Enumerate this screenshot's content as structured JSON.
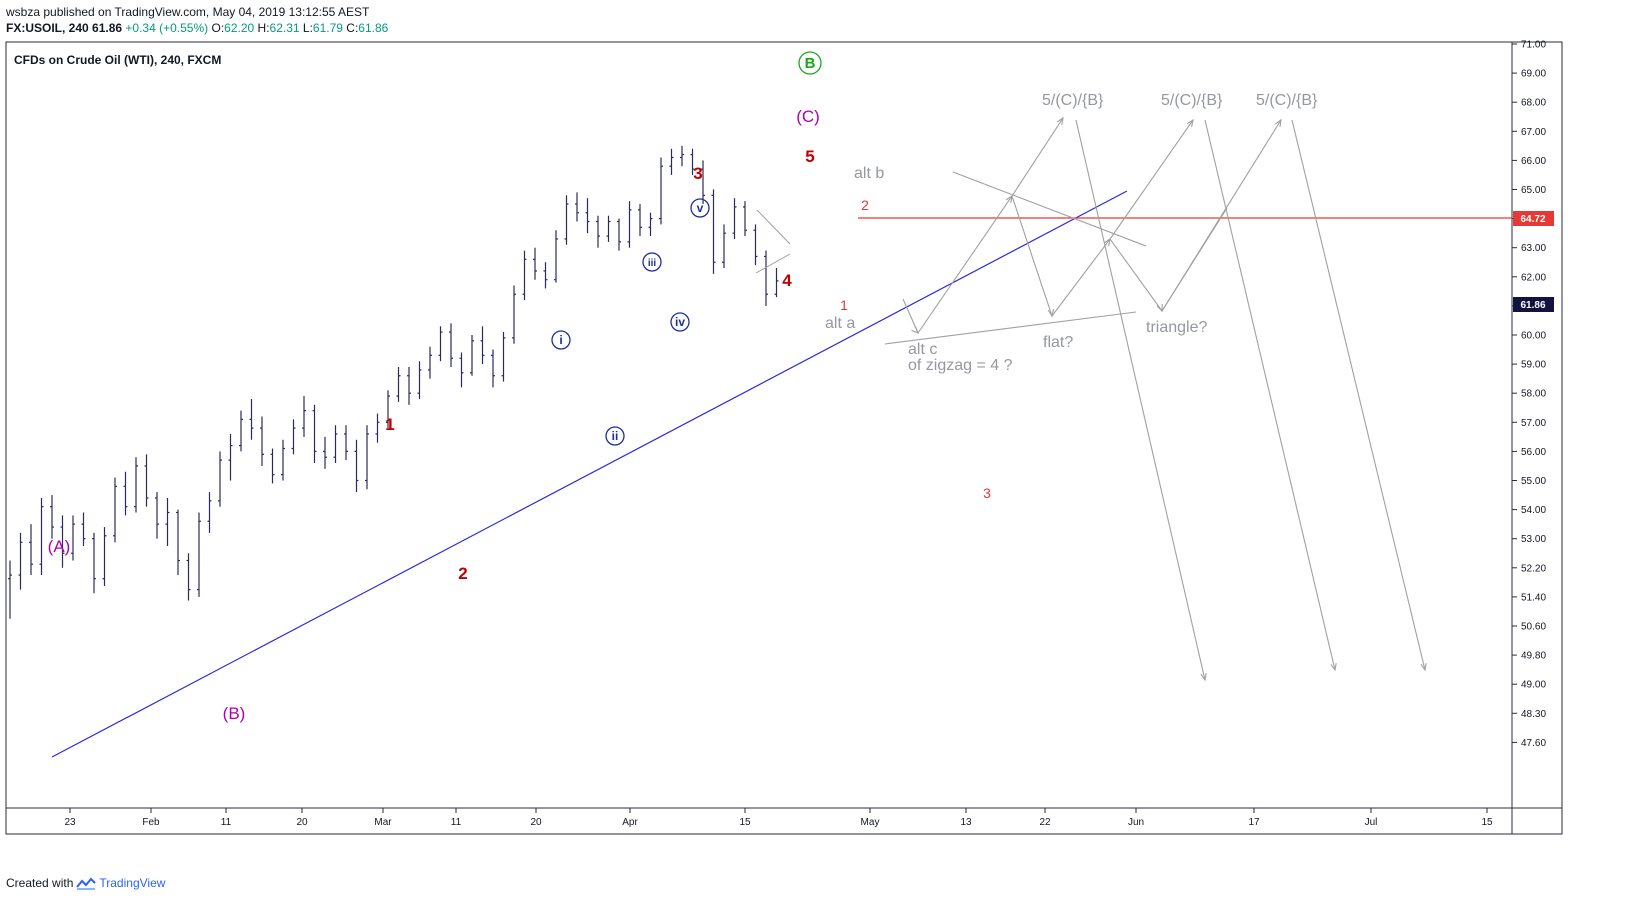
{
  "header": {
    "published": "wsbza published on TradingView.com, May 04, 2019 13:12:55 AEST",
    "symbol": "FX:USOIL, 240",
    "last": "61.86",
    "change": "+0.34 (+0.55%)",
    "o_label": "O:",
    "o": "62.20",
    "h_label": "H:",
    "h": "62.31",
    "l_label": "L:",
    "l": "61.79",
    "c_label": "C:",
    "c": "61.86"
  },
  "chart_title": "CFDs on Crude Oil (WTI), 240, FXCM",
  "footer": {
    "created": "Created with",
    "brand": "TradingView"
  },
  "colors": {
    "bars": "#2c2a5a",
    "trendline": "#2a2ae0",
    "resistance": "#e53935",
    "wave_red": "#c00000",
    "wave_purple": "#b000b0",
    "wave_green": "#1aa81a",
    "wave_navy": "#1f2f9a",
    "projection": "#a0a0a0"
  },
  "chart_data": {
    "type": "ohlc",
    "y_axis_labels": [
      "71.00",
      "69.00",
      "68.00",
      "67.00",
      "66.00",
      "65.00",
      "64.00",
      "63.00",
      "62.00",
      "61.00",
      "60.00",
      "59.00",
      "58.00",
      "57.00",
      "56.00",
      "55.00",
      "54.00",
      "53.00",
      "52.20",
      "51.40",
      "50.60",
      "49.80",
      "49.00",
      "48.30",
      "47.60"
    ],
    "x_axis_labels": [
      "23",
      "Feb",
      "11",
      "20",
      "Mar",
      "11",
      "20",
      "Apr",
      "15",
      "May",
      "13",
      "22",
      "Jun",
      "17",
      "Jul",
      "15"
    ],
    "price_labels": {
      "current": "61.86",
      "level": "64.72"
    },
    "series": [
      {
        "name": "FX:USOIL",
        "values": [
          {
            "d": 0,
            "o": 51.9,
            "h": 52.4,
            "l": 50.8,
            "c": 52.0
          },
          {
            "d": 2,
            "o": 52.0,
            "h": 53.2,
            "l": 51.6,
            "c": 52.9
          },
          {
            "d": 4,
            "o": 52.9,
            "h": 53.5,
            "l": 52.0,
            "c": 52.3
          },
          {
            "d": 6,
            "o": 52.3,
            "h": 54.4,
            "l": 52.0,
            "c": 54.1
          },
          {
            "d": 8,
            "o": 54.1,
            "h": 54.5,
            "l": 53.0,
            "c": 53.4
          },
          {
            "d": 10,
            "o": 53.4,
            "h": 53.8,
            "l": 52.2,
            "c": 52.6
          },
          {
            "d": 12,
            "o": 52.6,
            "h": 53.8,
            "l": 52.4,
            "c": 53.5
          },
          {
            "d": 14,
            "o": 53.5,
            "h": 53.9,
            "l": 52.8,
            "c": 53.0
          },
          {
            "d": 16,
            "o": 53.0,
            "h": 53.2,
            "l": 51.5,
            "c": 51.9
          },
          {
            "d": 18,
            "o": 51.9,
            "h": 53.4,
            "l": 51.7,
            "c": 53.1
          },
          {
            "d": 20,
            "o": 53.1,
            "h": 55.1,
            "l": 52.9,
            "c": 54.8
          },
          {
            "d": 22,
            "o": 54.8,
            "h": 55.3,
            "l": 53.8,
            "c": 54.1
          },
          {
            "d": 24,
            "o": 54.1,
            "h": 55.8,
            "l": 53.9,
            "c": 55.5
          },
          {
            "d": 26,
            "o": 55.5,
            "h": 55.9,
            "l": 54.1,
            "c": 54.4
          },
          {
            "d": 28,
            "o": 54.4,
            "h": 54.6,
            "l": 53.0,
            "c": 53.5
          },
          {
            "d": 30,
            "o": 53.5,
            "h": 54.4,
            "l": 52.8,
            "c": 53.9
          },
          {
            "d": 32,
            "o": 53.9,
            "h": 54.0,
            "l": 52.0,
            "c": 52.4
          },
          {
            "d": 34,
            "o": 52.4,
            "h": 52.6,
            "l": 51.3,
            "c": 51.6
          },
          {
            "d": 36,
            "o": 51.6,
            "h": 53.9,
            "l": 51.4,
            "c": 53.6
          },
          {
            "d": 38,
            "o": 53.6,
            "h": 54.6,
            "l": 53.2,
            "c": 54.3
          },
          {
            "d": 40,
            "o": 54.3,
            "h": 56.0,
            "l": 54.1,
            "c": 55.7
          },
          {
            "d": 42,
            "o": 55.7,
            "h": 56.6,
            "l": 55.0,
            "c": 56.2
          },
          {
            "d": 44,
            "o": 56.2,
            "h": 57.4,
            "l": 56.0,
            "c": 57.1
          },
          {
            "d": 46,
            "o": 57.1,
            "h": 57.8,
            "l": 56.4,
            "c": 56.8
          },
          {
            "d": 48,
            "o": 56.8,
            "h": 57.2,
            "l": 55.5,
            "c": 55.9
          },
          {
            "d": 50,
            "o": 55.9,
            "h": 56.1,
            "l": 54.9,
            "c": 55.2
          },
          {
            "d": 52,
            "o": 55.2,
            "h": 56.4,
            "l": 55.0,
            "c": 56.1
          },
          {
            "d": 54,
            "o": 56.1,
            "h": 57.1,
            "l": 55.9,
            "c": 56.8
          },
          {
            "d": 56,
            "o": 56.8,
            "h": 57.9,
            "l": 56.5,
            "c": 57.4
          },
          {
            "d": 58,
            "o": 57.4,
            "h": 57.6,
            "l": 55.6,
            "c": 56.0
          },
          {
            "d": 60,
            "o": 56.0,
            "h": 56.5,
            "l": 55.4,
            "c": 55.8
          },
          {
            "d": 62,
            "o": 55.8,
            "h": 56.9,
            "l": 55.6,
            "c": 56.6
          },
          {
            "d": 64,
            "o": 56.6,
            "h": 56.9,
            "l": 55.7,
            "c": 56.0
          },
          {
            "d": 66,
            "o": 56.0,
            "h": 56.4,
            "l": 54.6,
            "c": 55.0
          },
          {
            "d": 68,
            "o": 55.0,
            "h": 56.9,
            "l": 54.7,
            "c": 56.6
          },
          {
            "d": 70,
            "o": 56.6,
            "h": 57.3,
            "l": 56.3,
            "c": 57.0
          },
          {
            "d": 72,
            "o": 57.0,
            "h": 58.1,
            "l": 56.8,
            "c": 57.9
          },
          {
            "d": 74,
            "o": 57.9,
            "h": 58.9,
            "l": 57.7,
            "c": 58.6
          },
          {
            "d": 76,
            "o": 58.6,
            "h": 58.9,
            "l": 57.6,
            "c": 58.0
          },
          {
            "d": 78,
            "o": 58.0,
            "h": 59.1,
            "l": 57.8,
            "c": 58.8
          },
          {
            "d": 80,
            "o": 58.8,
            "h": 59.6,
            "l": 58.5,
            "c": 59.3
          },
          {
            "d": 82,
            "o": 59.3,
            "h": 60.3,
            "l": 59.1,
            "c": 60.1
          },
          {
            "d": 84,
            "o": 60.1,
            "h": 60.4,
            "l": 58.9,
            "c": 59.2
          },
          {
            "d": 86,
            "o": 59.2,
            "h": 59.4,
            "l": 58.2,
            "c": 58.7
          },
          {
            "d": 88,
            "o": 58.7,
            "h": 60.0,
            "l": 58.6,
            "c": 59.8
          },
          {
            "d": 90,
            "o": 59.8,
            "h": 60.3,
            "l": 59.0,
            "c": 59.3
          },
          {
            "d": 92,
            "o": 59.3,
            "h": 59.5,
            "l": 58.2,
            "c": 58.6
          },
          {
            "d": 94,
            "o": 58.6,
            "h": 60.1,
            "l": 58.4,
            "c": 59.9
          },
          {
            "d": 96,
            "o": 59.9,
            "h": 61.7,
            "l": 59.7,
            "c": 61.4
          },
          {
            "d": 98,
            "o": 61.4,
            "h": 62.9,
            "l": 61.2,
            "c": 62.6
          },
          {
            "d": 100,
            "o": 62.6,
            "h": 63.0,
            "l": 61.9,
            "c": 62.2
          },
          {
            "d": 102,
            "o": 62.2,
            "h": 62.5,
            "l": 61.6,
            "c": 61.9
          },
          {
            "d": 104,
            "o": 61.9,
            "h": 63.6,
            "l": 61.8,
            "c": 63.3
          },
          {
            "d": 106,
            "o": 63.3,
            "h": 64.8,
            "l": 63.1,
            "c": 64.5
          },
          {
            "d": 108,
            "o": 64.5,
            "h": 64.9,
            "l": 63.9,
            "c": 64.2
          },
          {
            "d": 110,
            "o": 64.2,
            "h": 64.7,
            "l": 63.5,
            "c": 63.9
          },
          {
            "d": 112,
            "o": 63.9,
            "h": 64.1,
            "l": 63.0,
            "c": 63.4
          },
          {
            "d": 114,
            "o": 63.4,
            "h": 64.1,
            "l": 63.2,
            "c": 63.9
          },
          {
            "d": 116,
            "o": 63.9,
            "h": 64.0,
            "l": 62.9,
            "c": 63.2
          },
          {
            "d": 118,
            "o": 63.2,
            "h": 64.6,
            "l": 63.0,
            "c": 64.3
          },
          {
            "d": 120,
            "o": 64.3,
            "h": 64.5,
            "l": 63.4,
            "c": 63.7
          },
          {
            "d": 122,
            "o": 63.7,
            "h": 64.2,
            "l": 63.4,
            "c": 64.0
          },
          {
            "d": 124,
            "o": 64.0,
            "h": 66.1,
            "l": 63.8,
            "c": 65.8
          },
          {
            "d": 126,
            "o": 65.8,
            "h": 66.4,
            "l": 65.5,
            "c": 66.1
          },
          {
            "d": 128,
            "o": 66.1,
            "h": 66.5,
            "l": 65.8,
            "c": 66.2
          },
          {
            "d": 130,
            "o": 66.2,
            "h": 66.4,
            "l": 65.5,
            "c": 65.7
          },
          {
            "d": 132,
            "o": 65.7,
            "h": 66.0,
            "l": 64.5,
            "c": 64.8
          },
          {
            "d": 134,
            "o": 64.8,
            "h": 65.0,
            "l": 62.1,
            "c": 62.5
          },
          {
            "d": 136,
            "o": 62.5,
            "h": 63.8,
            "l": 62.3,
            "c": 63.5
          },
          {
            "d": 138,
            "o": 63.5,
            "h": 64.7,
            "l": 63.3,
            "c": 64.4
          },
          {
            "d": 140,
            "o": 64.4,
            "h": 64.6,
            "l": 63.4,
            "c": 63.6
          },
          {
            "d": 142,
            "o": 63.6,
            "h": 63.8,
            "l": 62.4,
            "c": 62.7
          },
          {
            "d": 144,
            "o": 62.7,
            "h": 62.9,
            "l": 61.0,
            "c": 61.4
          },
          {
            "d": 146,
            "o": 61.4,
            "h": 62.3,
            "l": 61.3,
            "c": 61.86
          }
        ]
      }
    ],
    "wave_labels": [
      {
        "text": "(A)",
        "d": 8,
        "p": 53.9,
        "color": "purple"
      },
      {
        "text": "(B)",
        "d": 34,
        "p": 50.0,
        "color": "purple"
      },
      {
        "text": "1",
        "d": 58,
        "p": 58.3,
        "color": "red"
      },
      {
        "text": "2",
        "d": 70,
        "p": 53.7,
        "color": "red"
      },
      {
        "text": "i",
        "d": 82,
        "p": 60.8,
        "color": "navy",
        "circled": true
      },
      {
        "text": "ii",
        "d": 91,
        "p": 57.7,
        "color": "navy",
        "circled": true
      },
      {
        "text": "iii",
        "d": 97,
        "p": 63.3,
        "color": "navy",
        "circled": true
      },
      {
        "text": "iv",
        "d": 101,
        "p": 61.3,
        "color": "navy",
        "circled": true
      },
      {
        "text": "v",
        "d": 104,
        "p": 65.3,
        "color": "navy",
        "circled": true
      },
      {
        "text": "3",
        "d": 104,
        "p": 66.5,
        "color": "red"
      },
      {
        "text": "4",
        "d": 117,
        "p": 62.7,
        "color": "red"
      },
      {
        "text": "5",
        "d": 120,
        "p": 67.2,
        "color": "red"
      },
      {
        "text": "(C)",
        "d": 120,
        "p": 68.8,
        "color": "purple"
      },
      {
        "text": "B",
        "d": 120,
        "p": 70.4,
        "color": "green",
        "circled": true
      },
      {
        "text": "1",
        "d": 125,
        "p": 61.8,
        "color": "red_light"
      },
      {
        "text": "2",
        "d": 128,
        "p": 65.4,
        "color": "red_light"
      },
      {
        "text": "3",
        "d": 146,
        "p": 56.2,
        "color": "red_light"
      }
    ],
    "annotations": [
      {
        "text": "alt b",
        "d": 129,
        "p": 66.2
      },
      {
        "text": "alt a",
        "d": 125,
        "p": 61.1
      },
      {
        "text": "alt c",
        "d": 136,
        "p": 60.5
      },
      {
        "text": "of zigzag  = 4 ?",
        "d": 136,
        "p": 60.0
      },
      {
        "text": "flat?",
        "d": 155,
        "p": 60.6
      },
      {
        "text": "triangle?",
        "d": 170,
        "p": 61.0
      },
      {
        "text": "5/(C)/{B}",
        "d": 160,
        "p": 69.0
      },
      {
        "text": "5/(C)/{B}",
        "d": 178,
        "p": 69.0
      },
      {
        "text": "5/(C)/{B}",
        "d": 192,
        "p": 69.0
      }
    ]
  }
}
